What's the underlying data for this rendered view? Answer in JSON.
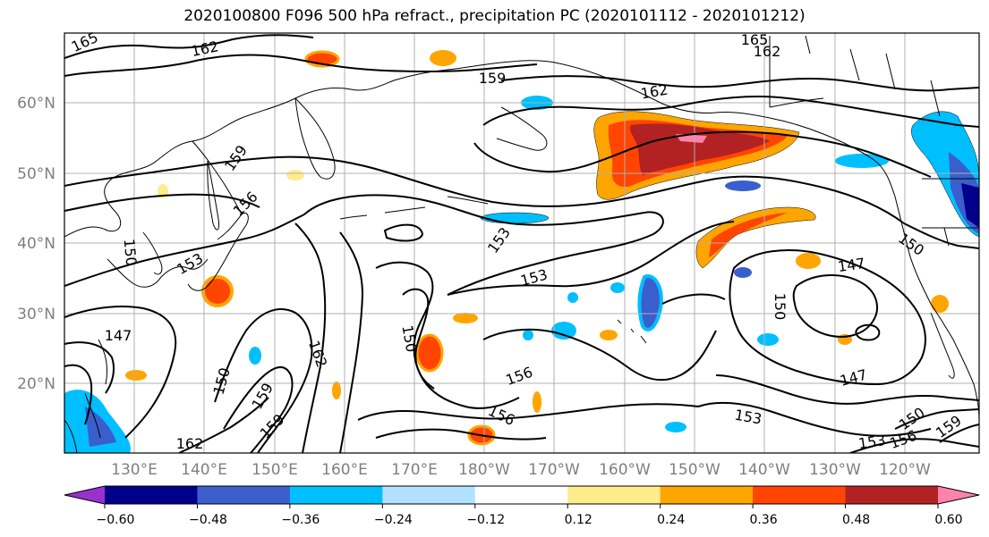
{
  "title": "2020100800 F096 500 hPa refract., precipitation PC (2020101112 - 2020101212)",
  "map": {
    "lat_labels": [
      "60°N",
      "50°N",
      "40°N",
      "30°N",
      "20°N"
    ],
    "lon_labels": [
      "130°E",
      "140°E",
      "150°E",
      "160°E",
      "170°E",
      "180°W",
      "170°W",
      "160°W",
      "150°W",
      "140°W",
      "130°W",
      "120°W"
    ],
    "contour_labels": [
      {
        "text": "165"
      },
      {
        "text": "162"
      },
      {
        "text": "165"
      },
      {
        "text": "162"
      },
      {
        "text": "159"
      },
      {
        "text": "162"
      },
      {
        "text": "159"
      },
      {
        "text": "156"
      },
      {
        "text": "150"
      },
      {
        "text": "153"
      },
      {
        "text": "153"
      },
      {
        "text": "153"
      },
      {
        "text": "150"
      },
      {
        "text": "147"
      },
      {
        "text": "147"
      },
      {
        "text": "150"
      },
      {
        "text": "150"
      },
      {
        "text": "162"
      },
      {
        "text": "159"
      },
      {
        "text": "159"
      },
      {
        "text": "162"
      },
      {
        "text": "156"
      },
      {
        "text": "156"
      },
      {
        "text": "153"
      },
      {
        "text": "147"
      },
      {
        "text": "150"
      },
      {
        "text": "153"
      },
      {
        "text": "156"
      },
      {
        "text": "150"
      },
      {
        "text": "159"
      }
    ]
  },
  "colorbar": {
    "ticks": [
      "−0.60",
      "−0.48",
      "−0.36",
      "−0.24",
      "−0.12",
      "0.12",
      "0.24",
      "0.36",
      "0.48",
      "0.60"
    ],
    "colors": [
      "#9932cc",
      "#00008b",
      "#3a5fcd",
      "#00bfff",
      "#b0e2ff",
      "#ffffff",
      "#ffec8b",
      "#ffa500",
      "#ff4500",
      "#b22222",
      "#ff82ab"
    ]
  }
}
